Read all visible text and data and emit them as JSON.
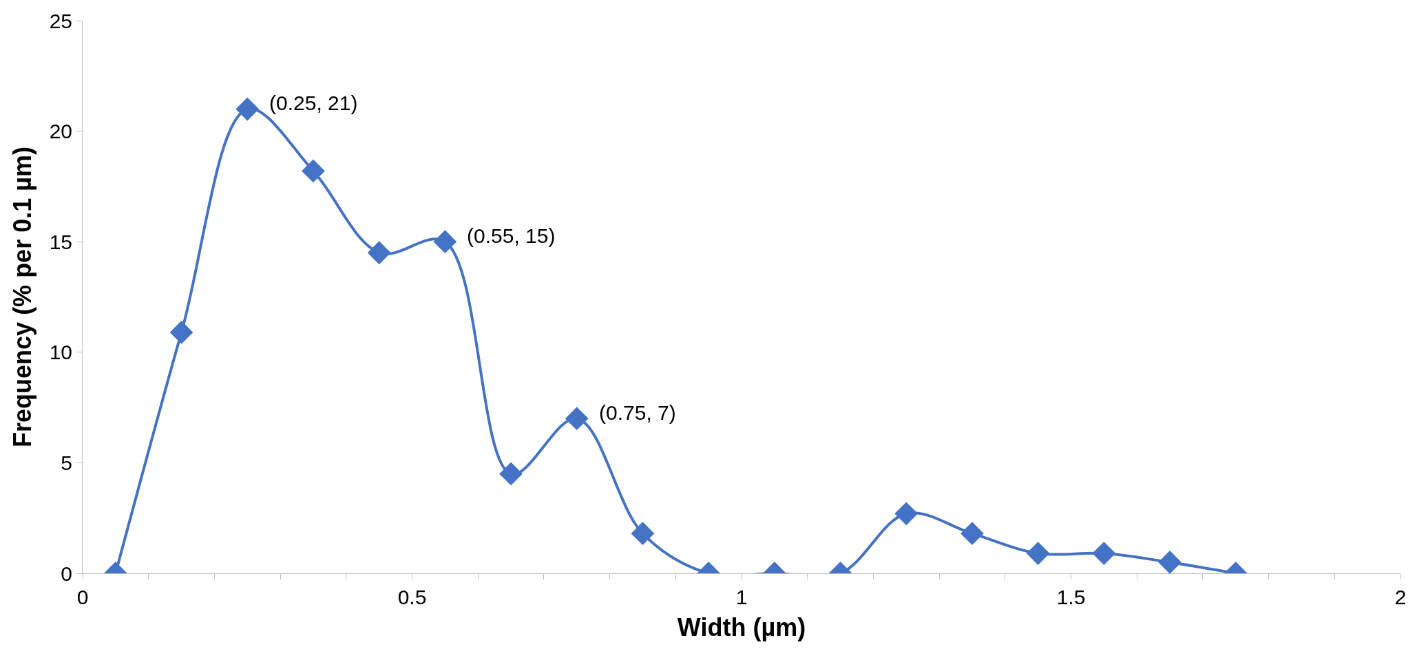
{
  "chart_data": {
    "type": "line",
    "xlabel": "Width (µm)",
    "ylabel": "Frequency (% per 0.1 µm)",
    "x": [
      0.05,
      0.15,
      0.25,
      0.35,
      0.45,
      0.55,
      0.65,
      0.75,
      0.85,
      0.95,
      1.05,
      1.15,
      1.25,
      1.35,
      1.45,
      1.55,
      1.65,
      1.75
    ],
    "series": [
      {
        "color": "#4472c4",
        "values": [
          0,
          10.9,
          21,
          18.2,
          14.5,
          15,
          4.5,
          7,
          1.8,
          0,
          0,
          0,
          2.7,
          1.8,
          0.9,
          0.9,
          0.5,
          0
        ]
      }
    ],
    "xlim": [
      0,
      2
    ],
    "ylim": [
      0,
      25
    ],
    "xticks": [
      0,
      {
        "value": 0.1,
        "label": null
      },
      {
        "value": 0.2,
        "label": null
      },
      {
        "value": 0.3,
        "label": null
      },
      {
        "value": 0.4,
        "label": null
      },
      0.5,
      {
        "value": 0.6,
        "label": null
      },
      {
        "value": 0.7,
        "label": null
      },
      {
        "value": 0.8,
        "label": null
      },
      {
        "value": 0.9,
        "label": null
      },
      1,
      {
        "value": 1.1,
        "label": null
      },
      {
        "value": 1.2,
        "label": null
      },
      {
        "value": 1.3,
        "label": null
      },
      {
        "value": 1.4,
        "label": null
      },
      1.5,
      {
        "value": 1.6,
        "label": null
      },
      {
        "value": 1.7,
        "label": null
      },
      {
        "value": 1.8,
        "label": null
      },
      {
        "value": 1.9,
        "label": null
      },
      2
    ],
    "yticks": [
      0,
      5,
      10,
      15,
      20,
      25
    ],
    "annotations": [
      {
        "text": "(0.25, 21)",
        "x": 0.25,
        "y": 21
      },
      {
        "text": "(0.55, 15)",
        "x": 0.55,
        "y": 15
      },
      {
        "text": "(0.75, 7)",
        "x": 0.75,
        "y": 7
      }
    ],
    "marker": "diamond",
    "line_style": "solid"
  }
}
